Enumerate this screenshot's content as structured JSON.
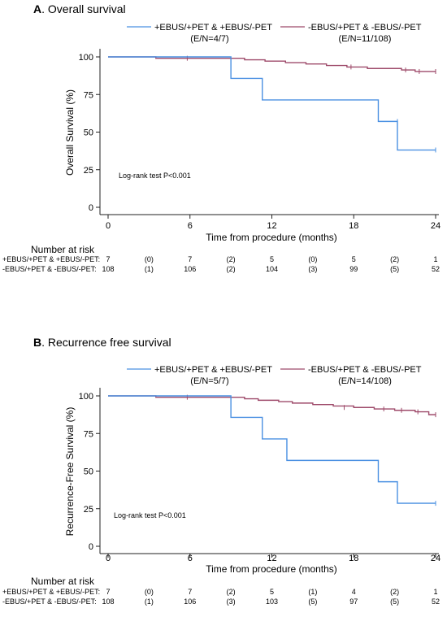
{
  "colors": {
    "blue": "#4a90e2",
    "maroon": "#9e4a6a"
  },
  "panels": [
    {
      "title_letter": "A",
      "title_rest": ". Overall survival",
      "legend": [
        {
          "label": "+EBUS/+PET & +EBUS/-PET",
          "sub": "(E/N=4/7)",
          "color": "blue"
        },
        {
          "label": "-EBUS/+PET & -EBUS/-PET",
          "sub": "(E/N=11/108)",
          "color": "maroon"
        }
      ],
      "logrank": "Log-rank test P<0.001",
      "risk_title": "Number at risk",
      "risk_rows": [
        {
          "label": "+EBUS/+PET & +EBUS/-PET:",
          "values": [
            "7",
            "(0)",
            "7",
            "(2)",
            "5",
            "(0)",
            "5",
            "(2)",
            "1"
          ]
        },
        {
          "label": "-EBUS/+PET & -EBUS/-PET:",
          "values": [
            "108",
            "(1)",
            "106",
            "(2)",
            "104",
            "(3)",
            "99",
            "(5)",
            "52"
          ]
        }
      ]
    },
    {
      "title_letter": "B",
      "title_rest": ". Recurrence free survival",
      "legend": [
        {
          "label": "+EBUS/+PET & +EBUS/-PET",
          "sub": "(E/N=5/7)",
          "color": "blue"
        },
        {
          "label": "-EBUS/+PET & -EBUS/-PET",
          "sub": "(E/N=14/108)",
          "color": "maroon"
        }
      ],
      "logrank": "Log-rank test P<0.001",
      "risk_title": "Number at risk",
      "risk_rows": [
        {
          "label": "+EBUS/+PET & +EBUS/-PET:",
          "values": [
            "7",
            "(0)",
            "7",
            "(2)",
            "5",
            "(1)",
            "4",
            "(2)",
            "1"
          ]
        },
        {
          "label": "-EBUS/+PET & -EBUS/-PET:",
          "values": [
            "108",
            "(1)",
            "106",
            "(3)",
            "103",
            "(5)",
            "97",
            "(5)",
            "52"
          ]
        }
      ]
    }
  ],
  "chart_data": [
    {
      "type": "line",
      "title": "A. Overall survival",
      "xlabel": "Time from procedure (months)",
      "ylabel": "Overall Survival (%)",
      "xlim": [
        0,
        24
      ],
      "ylim": [
        0,
        100
      ],
      "xticks": [
        0,
        6,
        12,
        18,
        24
      ],
      "yticks": [
        0,
        25,
        50,
        75,
        100
      ],
      "series": [
        {
          "name": "+EBUS/+PET & +EBUS/-PET",
          "color": "blue",
          "x": [
            0,
            9,
            11.3,
            19.8,
            21.2,
            24
          ],
          "y": [
            100,
            85.7,
            71.4,
            57.1,
            38.1,
            38.1
          ],
          "censor_x": [
            21.2,
            24
          ],
          "censor_y": [
            57.1,
            38.1
          ]
        },
        {
          "name": "-EBUS/+PET & -EBUS/-PET",
          "color": "maroon",
          "x": [
            0,
            3.5,
            8.5,
            10,
            11.5,
            13,
            14.5,
            16,
            17.5,
            19,
            21.5,
            22.5,
            24
          ],
          "y": [
            100,
            99.1,
            99.1,
            98.1,
            97.2,
            96.2,
            95.3,
            94.3,
            93.3,
            92.3,
            91.3,
            90.3,
            90.3
          ],
          "censor_x": [
            5.8,
            17.8,
            21.8,
            22.8,
            24
          ],
          "censor_y": [
            99.1,
            93.3,
            91.3,
            90.3,
            90.3
          ]
        }
      ]
    },
    {
      "type": "line",
      "title": "B. Recurrence free survival",
      "xlabel": "Time from procedure (months)",
      "ylabel": "Recurrence-Free Survival (%)",
      "xlim": [
        0,
        24
      ],
      "ylim": [
        0,
        100
      ],
      "xticks": [
        0,
        6,
        12,
        18,
        24
      ],
      "yticks": [
        0,
        25,
        50,
        75,
        100
      ],
      "series": [
        {
          "name": "+EBUS/+PET & +EBUS/-PET",
          "color": "blue",
          "x": [
            0,
            9,
            11.3,
            13.1,
            19.8,
            21.2,
            24
          ],
          "y": [
            100,
            85.7,
            71.4,
            57.1,
            42.9,
            28.6,
            28.6
          ],
          "censor_x": [
            24
          ],
          "censor_y": [
            28.6
          ]
        },
        {
          "name": "-EBUS/+PET & -EBUS/-PET",
          "color": "maroon",
          "x": [
            0,
            3.5,
            8.8,
            10,
            11,
            12.5,
            13.5,
            15,
            16.5,
            18,
            19.5,
            21,
            22.5,
            23.5,
            24
          ],
          "y": [
            100,
            99.1,
            99.1,
            98.1,
            97.1,
            96.2,
            95.2,
            94.2,
            93.3,
            92.3,
            91.3,
            90.4,
            89.4,
            87.5,
            87.5
          ],
          "censor_x": [
            5.8,
            17.3,
            20.2,
            21.5,
            22.7,
            24
          ],
          "censor_y": [
            99.1,
            92.3,
            91.3,
            90.4,
            89.4,
            87.5
          ]
        }
      ]
    }
  ]
}
